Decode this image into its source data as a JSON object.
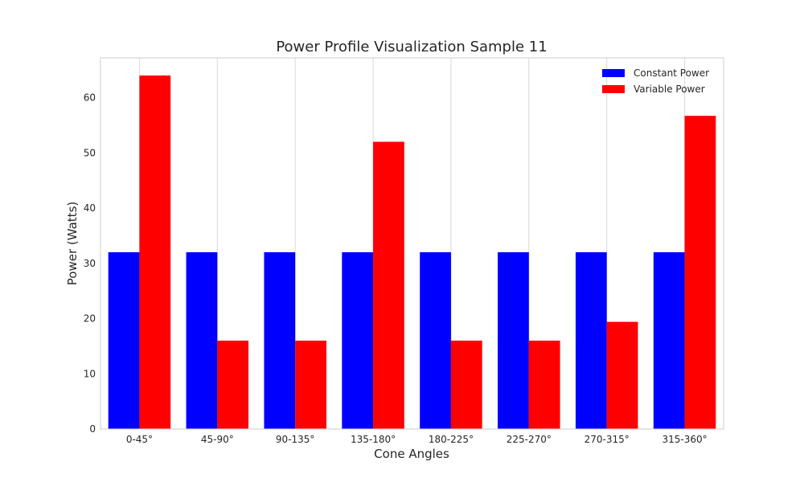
{
  "chart_data": {
    "type": "bar",
    "title": "Power Profile Visualization Sample 11",
    "xlabel": "Cone Angles",
    "ylabel": "Power (Watts)",
    "categories": [
      "0-45°",
      "45-90°",
      "90-135°",
      "135-180°",
      "180-225°",
      "225-270°",
      "270-315°",
      "315-360°"
    ],
    "series": [
      {
        "name": "Constant Power",
        "color": "#0000ff",
        "values": [
          32,
          32,
          32,
          32,
          32,
          32,
          32,
          32
        ]
      },
      {
        "name": "Variable Power",
        "color": "#ff0000",
        "values": [
          64,
          16,
          16,
          52,
          16,
          16,
          19.4,
          56.7
        ]
      }
    ],
    "ylim": [
      0,
      67.2
    ],
    "yticks": [
      0,
      10,
      20,
      30,
      40,
      50,
      60
    ],
    "grid": "vertical",
    "legend_position": "top-right"
  }
}
